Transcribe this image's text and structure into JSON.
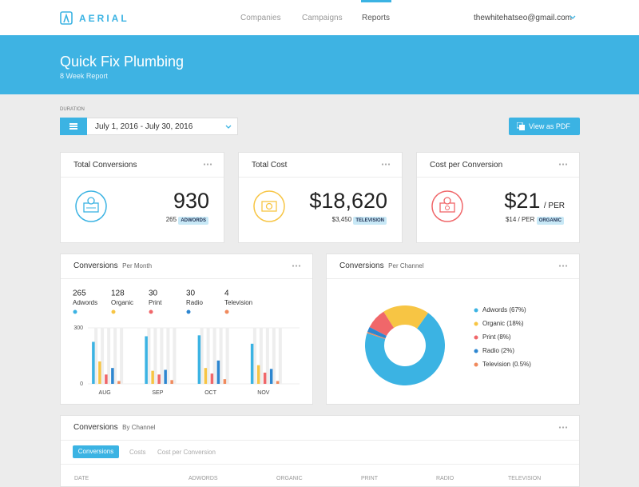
{
  "nav": {
    "logo": "AERIAL",
    "links": [
      "Companies",
      "Campaigns",
      "Reports"
    ],
    "user": "thewhitehatseo@gmail.com"
  },
  "header": {
    "title": "Quick Fix Plumbing",
    "subtitle": "8 Week Report"
  },
  "controls": {
    "duration_label": "DURATION",
    "date_range": "July 1, 2016 - July 30, 2016",
    "pdf_button": "View as PDF"
  },
  "cards": [
    {
      "title": "Total Conversions",
      "value": 930,
      "sub_value": 265,
      "tag": "ADWORDS"
    },
    {
      "title": "Total Cost",
      "value": "$18,620",
      "sub_value": "$3,450",
      "tag": "TELEVISION"
    },
    {
      "title": "Cost per Conversion",
      "value": "$21",
      "unit": "/ PER",
      "sub_value": "$14 / PER",
      "tag": "ORGANIC"
    }
  ],
  "chart_data": [
    {
      "type": "bar",
      "title": "Conversions",
      "subtitle": "Per Month",
      "categories": [
        "AUG",
        "SEP",
        "OCT",
        "NOV"
      ],
      "series": [
        {
          "name": "Adwords",
          "color": "#3bb3e3",
          "total": 265,
          "values": [
            225,
            255,
            260,
            215
          ]
        },
        {
          "name": "Organic",
          "color": "#f7c544",
          "total": 128,
          "values": [
            120,
            70,
            85,
            100
          ]
        },
        {
          "name": "Print",
          "color": "#f0676a",
          "total": 30,
          "values": [
            50,
            50,
            55,
            60
          ]
        },
        {
          "name": "Radio",
          "color": "#2d86d0",
          "total": 30,
          "values": [
            85,
            75,
            125,
            80
          ]
        },
        {
          "name": "Television",
          "color": "#f08a5d",
          "total": 4,
          "values": [
            15,
            20,
            25,
            15
          ]
        }
      ],
      "ylim": [
        0,
        300
      ],
      "yticks": [
        0,
        300
      ],
      "grid": true
    },
    {
      "type": "pie",
      "title": "Conversions",
      "subtitle": "Per Channel",
      "values": [
        67,
        18,
        8,
        2,
        0.5
      ],
      "value_labels": [
        "Adwords (67%)",
        "Organic (18%)",
        "Print (8%)",
        "Radio (2%)",
        "Television (0.5%)"
      ],
      "colors": [
        "#3bb3e3",
        "#f7c544",
        "#f0676a",
        "#2d86d0",
        "#f08a5d"
      ]
    }
  ],
  "table": {
    "title": "Conversions",
    "subtitle": "By Channel",
    "tabs": [
      "Conversions",
      "Costs",
      "Cost per Conversion"
    ],
    "columns": [
      "DATE",
      "ADWORDS",
      "ORGANIC",
      "PRINT",
      "RADIO",
      "TELEVISION"
    ]
  }
}
